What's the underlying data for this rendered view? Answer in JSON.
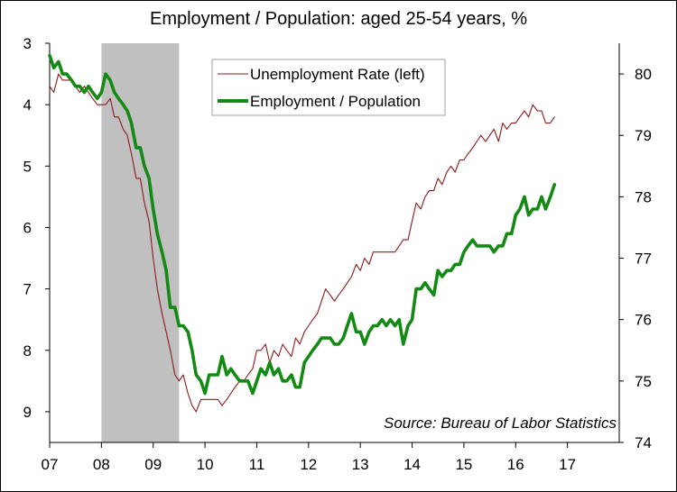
{
  "chart_data": {
    "type": "line",
    "title": "Employment / Population: aged 25-54 years, %",
    "source": "Source: Bureau of Labor Statistics",
    "x_range": [
      2007.0,
      2018.0
    ],
    "x_ticks": [
      "07",
      "08",
      "09",
      "10",
      "11",
      "12",
      "13",
      "14",
      "15",
      "16",
      "17"
    ],
    "recession": {
      "start": 2008.0,
      "end": 2009.5
    },
    "y_left": {
      "range": [
        3,
        9.5
      ],
      "inverted": true,
      "ticks": [
        "3",
        "4",
        "5",
        "6",
        "7",
        "8",
        "9"
      ]
    },
    "y_right": {
      "range": [
        74,
        80.5
      ],
      "ticks": [
        "74",
        "75",
        "76",
        "77",
        "78",
        "79",
        "80"
      ]
    },
    "grid": false,
    "legend_position": "top-center",
    "series": [
      {
        "name": "Unemployment Rate (left)",
        "color": "#8b1a1a",
        "axis": "left",
        "points": [
          [
            2007.0,
            3.7
          ],
          [
            2007.08,
            3.8
          ],
          [
            2007.17,
            3.5
          ],
          [
            2007.25,
            3.6
          ],
          [
            2007.33,
            3.6
          ],
          [
            2007.42,
            3.6
          ],
          [
            2007.5,
            3.7
          ],
          [
            2007.58,
            3.8
          ],
          [
            2007.67,
            3.7
          ],
          [
            2007.75,
            3.8
          ],
          [
            2007.83,
            3.9
          ],
          [
            2007.92,
            4.0
          ],
          [
            2008.0,
            4.0
          ],
          [
            2008.08,
            4.0
          ],
          [
            2008.17,
            3.9
          ],
          [
            2008.25,
            4.2
          ],
          [
            2008.33,
            4.2
          ],
          [
            2008.42,
            4.4
          ],
          [
            2008.5,
            4.5
          ],
          [
            2008.58,
            4.8
          ],
          [
            2008.67,
            5.2
          ],
          [
            2008.75,
            5.2
          ],
          [
            2008.83,
            5.6
          ],
          [
            2008.92,
            5.9
          ],
          [
            2009.0,
            6.5
          ],
          [
            2009.08,
            7.0
          ],
          [
            2009.17,
            7.4
          ],
          [
            2009.25,
            7.7
          ],
          [
            2009.33,
            8.0
          ],
          [
            2009.42,
            8.4
          ],
          [
            2009.5,
            8.5
          ],
          [
            2009.58,
            8.4
          ],
          [
            2009.67,
            8.7
          ],
          [
            2009.75,
            8.9
          ],
          [
            2009.83,
            9.0
          ],
          [
            2009.92,
            8.8
          ],
          [
            2010.0,
            8.8
          ],
          [
            2010.08,
            8.8
          ],
          [
            2010.17,
            8.8
          ],
          [
            2010.25,
            8.8
          ],
          [
            2010.33,
            8.9
          ],
          [
            2010.42,
            8.8
          ],
          [
            2010.5,
            8.7
          ],
          [
            2010.58,
            8.6
          ],
          [
            2010.67,
            8.5
          ],
          [
            2010.75,
            8.5
          ],
          [
            2010.83,
            8.4
          ],
          [
            2010.92,
            8.3
          ],
          [
            2011.0,
            8.0
          ],
          [
            2011.08,
            8.0
          ],
          [
            2011.17,
            7.9
          ],
          [
            2011.25,
            8.2
          ],
          [
            2011.33,
            8.0
          ],
          [
            2011.42,
            8.1
          ],
          [
            2011.5,
            7.9
          ],
          [
            2011.58,
            8.0
          ],
          [
            2011.67,
            8.1
          ],
          [
            2011.75,
            7.8
          ],
          [
            2011.83,
            7.9
          ],
          [
            2011.92,
            7.7
          ],
          [
            2012.0,
            7.6
          ],
          [
            2012.08,
            7.5
          ],
          [
            2012.17,
            7.4
          ],
          [
            2012.25,
            7.2
          ],
          [
            2012.33,
            7.0
          ],
          [
            2012.42,
            7.1
          ],
          [
            2012.5,
            7.2
          ],
          [
            2012.58,
            7.1
          ],
          [
            2012.67,
            7.0
          ],
          [
            2012.75,
            6.9
          ],
          [
            2012.83,
            6.8
          ],
          [
            2012.92,
            6.6
          ],
          [
            2013.0,
            6.7
          ],
          [
            2013.08,
            6.5
          ],
          [
            2013.17,
            6.6
          ],
          [
            2013.25,
            6.4
          ],
          [
            2013.33,
            6.4
          ],
          [
            2013.42,
            6.4
          ],
          [
            2013.5,
            6.4
          ],
          [
            2013.58,
            6.4
          ],
          [
            2013.67,
            6.4
          ],
          [
            2013.75,
            6.3
          ],
          [
            2013.83,
            6.2
          ],
          [
            2013.92,
            6.2
          ],
          [
            2014.0,
            5.9
          ],
          [
            2014.08,
            5.6
          ],
          [
            2014.17,
            5.7
          ],
          [
            2014.25,
            5.5
          ],
          [
            2014.33,
            5.4
          ],
          [
            2014.42,
            5.4
          ],
          [
            2014.5,
            5.2
          ],
          [
            2014.58,
            5.3
          ],
          [
            2014.67,
            5.1
          ],
          [
            2014.75,
            5.0
          ],
          [
            2014.83,
            5.1
          ],
          [
            2014.92,
            4.9
          ],
          [
            2015.0,
            4.9
          ],
          [
            2015.08,
            4.8
          ],
          [
            2015.17,
            4.7
          ],
          [
            2015.25,
            4.6
          ],
          [
            2015.33,
            4.5
          ],
          [
            2015.42,
            4.6
          ],
          [
            2015.5,
            4.5
          ],
          [
            2015.58,
            4.4
          ],
          [
            2015.67,
            4.6
          ],
          [
            2015.75,
            4.3
          ],
          [
            2015.83,
            4.4
          ],
          [
            2015.92,
            4.3
          ],
          [
            2016.0,
            4.3
          ],
          [
            2016.08,
            4.2
          ],
          [
            2016.17,
            4.1
          ],
          [
            2016.25,
            4.2
          ],
          [
            2016.33,
            4.0
          ],
          [
            2016.42,
            4.1
          ],
          [
            2016.5,
            4.1
          ],
          [
            2016.58,
            4.3
          ],
          [
            2016.67,
            4.3
          ],
          [
            2016.75,
            4.2
          ]
        ]
      },
      {
        "name": "Employment / Population",
        "color": "#138a13",
        "axis": "right",
        "points": [
          [
            2007.0,
            80.3
          ],
          [
            2007.08,
            80.1
          ],
          [
            2007.17,
            80.2
          ],
          [
            2007.25,
            80.0
          ],
          [
            2007.33,
            80.0
          ],
          [
            2007.42,
            79.9
          ],
          [
            2007.5,
            79.8
          ],
          [
            2007.58,
            79.8
          ],
          [
            2007.67,
            79.7
          ],
          [
            2007.75,
            79.8
          ],
          [
            2007.83,
            79.7
          ],
          [
            2007.92,
            79.6
          ],
          [
            2008.0,
            79.7
          ],
          [
            2008.08,
            80.0
          ],
          [
            2008.17,
            79.9
          ],
          [
            2008.25,
            79.7
          ],
          [
            2008.33,
            79.6
          ],
          [
            2008.42,
            79.5
          ],
          [
            2008.5,
            79.4
          ],
          [
            2008.58,
            79.2
          ],
          [
            2008.67,
            78.8
          ],
          [
            2008.75,
            78.8
          ],
          [
            2008.83,
            78.5
          ],
          [
            2008.92,
            78.3
          ],
          [
            2009.0,
            77.8
          ],
          [
            2009.08,
            77.4
          ],
          [
            2009.17,
            77.1
          ],
          [
            2009.25,
            76.8
          ],
          [
            2009.33,
            76.2
          ],
          [
            2009.42,
            76.2
          ],
          [
            2009.5,
            75.9
          ],
          [
            2009.58,
            75.9
          ],
          [
            2009.67,
            75.8
          ],
          [
            2009.75,
            75.5
          ],
          [
            2009.83,
            75.1
          ],
          [
            2009.92,
            75.0
          ],
          [
            2010.0,
            74.8
          ],
          [
            2010.08,
            75.1
          ],
          [
            2010.17,
            75.1
          ],
          [
            2010.25,
            75.1
          ],
          [
            2010.33,
            75.4
          ],
          [
            2010.42,
            75.1
          ],
          [
            2010.5,
            75.2
          ],
          [
            2010.58,
            75.1
          ],
          [
            2010.67,
            75.0
          ],
          [
            2010.75,
            75.0
          ],
          [
            2010.83,
            75.0
          ],
          [
            2010.92,
            74.8
          ],
          [
            2011.0,
            75.0
          ],
          [
            2011.08,
            75.2
          ],
          [
            2011.17,
            75.1
          ],
          [
            2011.25,
            75.3
          ],
          [
            2011.33,
            75.1
          ],
          [
            2011.42,
            75.2
          ],
          [
            2011.5,
            75.0
          ],
          [
            2011.58,
            75.0
          ],
          [
            2011.67,
            75.1
          ],
          [
            2011.75,
            74.9
          ],
          [
            2011.83,
            74.9
          ],
          [
            2011.92,
            75.3
          ],
          [
            2012.0,
            75.4
          ],
          [
            2012.08,
            75.5
          ],
          [
            2012.17,
            75.6
          ],
          [
            2012.25,
            75.7
          ],
          [
            2012.33,
            75.7
          ],
          [
            2012.42,
            75.7
          ],
          [
            2012.5,
            75.6
          ],
          [
            2012.58,
            75.6
          ],
          [
            2012.67,
            75.7
          ],
          [
            2012.75,
            75.9
          ],
          [
            2012.83,
            76.1
          ],
          [
            2012.92,
            75.8
          ],
          [
            2013.0,
            75.8
          ],
          [
            2013.08,
            75.6
          ],
          [
            2013.17,
            75.8
          ],
          [
            2013.25,
            75.9
          ],
          [
            2013.33,
            75.9
          ],
          [
            2013.42,
            76.0
          ],
          [
            2013.5,
            75.9
          ],
          [
            2013.58,
            76.0
          ],
          [
            2013.67,
            75.9
          ],
          [
            2013.75,
            76.0
          ],
          [
            2013.83,
            75.6
          ],
          [
            2013.92,
            75.9
          ],
          [
            2014.0,
            76.0
          ],
          [
            2014.08,
            76.5
          ],
          [
            2014.17,
            76.5
          ],
          [
            2014.25,
            76.6
          ],
          [
            2014.33,
            76.5
          ],
          [
            2014.42,
            76.4
          ],
          [
            2014.5,
            76.8
          ],
          [
            2014.58,
            76.7
          ],
          [
            2014.67,
            76.8
          ],
          [
            2014.75,
            76.8
          ],
          [
            2014.83,
            76.9
          ],
          [
            2014.92,
            76.9
          ],
          [
            2015.0,
            77.1
          ],
          [
            2015.08,
            77.2
          ],
          [
            2015.17,
            77.3
          ],
          [
            2015.25,
            77.2
          ],
          [
            2015.33,
            77.2
          ],
          [
            2015.42,
            77.2
          ],
          [
            2015.5,
            77.2
          ],
          [
            2015.58,
            77.1
          ],
          [
            2015.67,
            77.2
          ],
          [
            2015.75,
            77.2
          ],
          [
            2015.83,
            77.4
          ],
          [
            2015.92,
            77.4
          ],
          [
            2016.0,
            77.7
          ],
          [
            2016.08,
            77.8
          ],
          [
            2016.17,
            78.0
          ],
          [
            2016.25,
            77.7
          ],
          [
            2016.33,
            77.8
          ],
          [
            2016.42,
            77.8
          ],
          [
            2016.5,
            78.0
          ],
          [
            2016.58,
            77.8
          ],
          [
            2016.67,
            78.0
          ],
          [
            2016.75,
            78.2
          ]
        ]
      }
    ]
  }
}
